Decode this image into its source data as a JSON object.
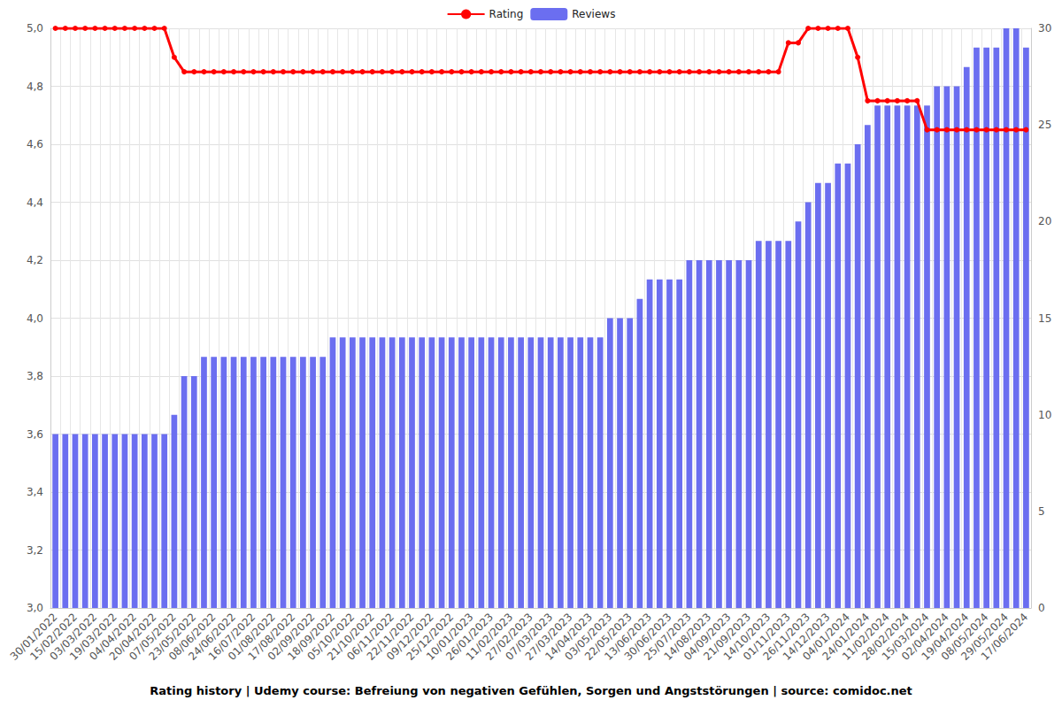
{
  "chart_data": {
    "type": "bar",
    "title": "Rating history | Udemy course: Befreiung von negativen Gefühlen, Sorgen und Angststörungen | source: comidoc.net",
    "categories": [
      "30/01/2022",
      null,
      "15/02/2022",
      null,
      "03/03/2022",
      null,
      "19/03/2022",
      null,
      "04/04/2022",
      null,
      "20/04/2022",
      null,
      "07/05/2022",
      null,
      "23/05/2022",
      null,
      "08/06/2022",
      null,
      "24/06/2022",
      null,
      "16/07/2022",
      null,
      "01/08/2022",
      null,
      "17/08/2022",
      null,
      "02/09/2022",
      null,
      "18/09/2022",
      null,
      "05/10/2022",
      null,
      "21/10/2022",
      null,
      "06/11/2022",
      null,
      "22/11/2022",
      null,
      "09/12/2022",
      null,
      "25/12/2022",
      null,
      "10/01/2023",
      null,
      "26/01/2023",
      null,
      "11/02/2023",
      null,
      "27/02/2023",
      null,
      "07/03/2023",
      null,
      "27/03/2023",
      null,
      "14/04/2023",
      null,
      "03/05/2023",
      null,
      "22/05/2023",
      null,
      "13/06/2023",
      null,
      "30/06/2023",
      null,
      "25/07/2023",
      null,
      "14/08/2023",
      null,
      "04/09/2023",
      null,
      "21/09/2023",
      null,
      "14/10/2023",
      null,
      "01/11/2023",
      null,
      "26/11/2023",
      null,
      "14/12/2023",
      null,
      "04/01/2024",
      null,
      "24/01/2024",
      null,
      "11/02/2024",
      null,
      "28/02/2024",
      null,
      "15/03/2024",
      null,
      "02/04/2024",
      null,
      "19/04/2024",
      null,
      "08/05/2024",
      null,
      "29/05/2024",
      null,
      "17/06/2024"
    ],
    "series": [
      {
        "name": "Rating",
        "type": "line",
        "color": "#ff0000",
        "marker": "circle",
        "axis": "y",
        "values": [
          5.0,
          5.0,
          5.0,
          5.0,
          5.0,
          5.0,
          5.0,
          5.0,
          5.0,
          5.0,
          5.0,
          5.0,
          4.9,
          4.85,
          4.85,
          4.85,
          4.85,
          4.85,
          4.85,
          4.85,
          4.85,
          4.85,
          4.85,
          4.85,
          4.85,
          4.85,
          4.85,
          4.85,
          4.85,
          4.85,
          4.85,
          4.85,
          4.85,
          4.85,
          4.85,
          4.85,
          4.85,
          4.85,
          4.85,
          4.85,
          4.85,
          4.85,
          4.85,
          4.85,
          4.85,
          4.85,
          4.85,
          4.85,
          4.85,
          4.85,
          4.85,
          4.85,
          4.85,
          4.85,
          4.85,
          4.85,
          4.85,
          4.85,
          4.85,
          4.85,
          4.85,
          4.85,
          4.85,
          4.85,
          4.85,
          4.85,
          4.85,
          4.85,
          4.85,
          4.85,
          4.85,
          4.85,
          4.85,
          4.85,
          4.95,
          4.95,
          5.0,
          5.0,
          5.0,
          5.0,
          5.0,
          4.9,
          4.75,
          4.75,
          4.75,
          4.75,
          4.75,
          4.75,
          4.65,
          4.65,
          4.65,
          4.65,
          4.65,
          4.65,
          4.65,
          4.65,
          4.65,
          4.65,
          4.65
        ]
      },
      {
        "name": "Reviews",
        "type": "bar",
        "color": "#6b6ef0",
        "axis": "y2",
        "values": [
          9,
          9,
          9,
          9,
          9,
          9,
          9,
          9,
          9,
          9,
          9,
          9,
          10,
          12,
          12,
          13,
          13,
          13,
          13,
          13,
          13,
          13,
          13,
          13,
          13,
          13,
          13,
          13,
          14,
          14,
          14,
          14,
          14,
          14,
          14,
          14,
          14,
          14,
          14,
          14,
          14,
          14,
          14,
          14,
          14,
          14,
          14,
          14,
          14,
          14,
          14,
          14,
          14,
          14,
          14,
          14,
          15,
          15,
          15,
          16,
          17,
          17,
          17,
          17,
          18,
          18,
          18,
          18,
          18,
          18,
          18,
          19,
          19,
          19,
          19,
          20,
          21,
          22,
          22,
          23,
          23,
          24,
          25,
          26,
          26,
          26,
          26,
          26,
          26,
          27,
          27,
          27,
          28,
          29,
          29,
          29,
          30,
          30,
          29
        ]
      }
    ],
    "ylim": [
      3.0,
      5.0
    ],
    "yticks": [
      {
        "value": 3.0,
        "label": "3,0"
      },
      {
        "value": 3.2,
        "label": "3,2"
      },
      {
        "value": 3.4,
        "label": "3,4"
      },
      {
        "value": 3.6,
        "label": "3,6"
      },
      {
        "value": 3.8,
        "label": "3,8"
      },
      {
        "value": 4.0,
        "label": "4,0"
      },
      {
        "value": 4.2,
        "label": "4,2"
      },
      {
        "value": 4.4,
        "label": "4,4"
      },
      {
        "value": 4.6,
        "label": "4,6"
      },
      {
        "value": 4.8,
        "label": "4,8"
      },
      {
        "value": 5.0,
        "label": "5,0"
      }
    ],
    "y2lim": [
      0,
      30
    ],
    "y2ticks": [
      0,
      5,
      10,
      15,
      20,
      25,
      30
    ],
    "grid": true,
    "legend": "top"
  }
}
